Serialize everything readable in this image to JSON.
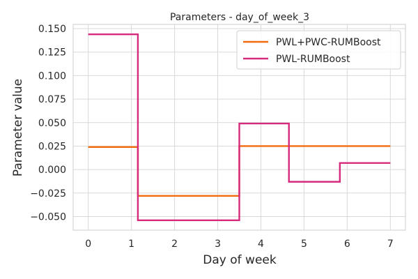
{
  "chart_data": {
    "type": "line",
    "step": "post",
    "title": "Parameters - day_of_week_3",
    "xlabel": "Day of week",
    "ylabel": "Parameter value",
    "xlim": [
      -0.35,
      7.35
    ],
    "ylim": [
      -0.0645,
      0.1545
    ],
    "xticks": [
      0,
      1,
      2,
      3,
      4,
      5,
      6,
      7
    ],
    "xtick_labels": [
      "0",
      "1",
      "2",
      "3",
      "4",
      "5",
      "6",
      "7"
    ],
    "yticks": [
      0.15,
      0.125,
      0.1,
      0.075,
      0.05,
      0.025,
      0.0,
      -0.025,
      -0.05
    ],
    "ytick_labels": [
      "0.150",
      "0.125",
      "0.100",
      "0.075",
      "0.050",
      "0.025",
      "0.000",
      "−0.025",
      "−0.050"
    ],
    "grid": true,
    "legend_position": "top-right",
    "series": [
      {
        "name": "PWL+PWC-RUMBoost",
        "color": "#f26b0f",
        "x": [
          0,
          1.15,
          1.15,
          3.5,
          3.5,
          7
        ],
        "y": [
          0.024,
          0.024,
          -0.028,
          -0.028,
          0.025,
          0.025
        ]
      },
      {
        "name": "PWL-RUMBoost",
        "color": "#d62a7d",
        "x": [
          0,
          1.15,
          1.15,
          3.5,
          3.5,
          4.65,
          4.65,
          5.83,
          5.83,
          7
        ],
        "y": [
          0.144,
          0.144,
          -0.054,
          -0.054,
          0.049,
          0.049,
          -0.013,
          -0.013,
          0.007,
          0.007
        ]
      }
    ]
  }
}
